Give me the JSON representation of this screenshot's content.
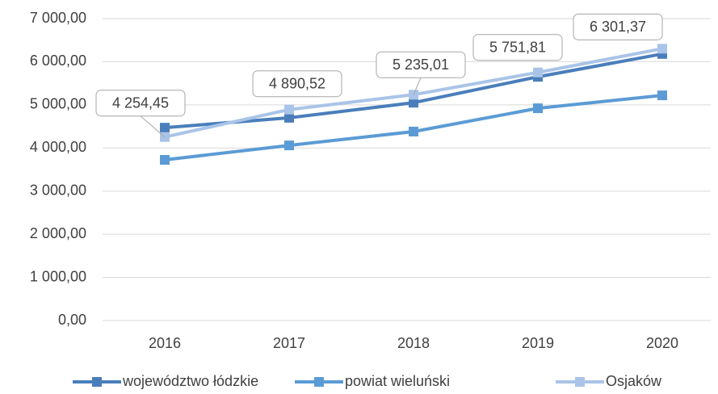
{
  "chart_data": {
    "type": "line",
    "categories": [
      "2016",
      "2017",
      "2018",
      "2019",
      "2020"
    ],
    "series": [
      {
        "name": "województwo łódzkie",
        "color": "#4a7ebb",
        "values": [
          4470,
          4700,
          5050,
          5650,
          6180
        ]
      },
      {
        "name": "powiat wieluński",
        "color": "#5b9bd5",
        "values": [
          3725,
          4060,
          4380,
          4920,
          5220
        ]
      },
      {
        "name": "Osjaków",
        "color": "#a9c4e8",
        "values": [
          4254.45,
          4890.52,
          5235.01,
          5751.81,
          6301.37
        ],
        "value_labels": [
          "4 254,45",
          "4 890,52",
          "5 235,01",
          "5 751,81",
          "6 301,37"
        ]
      }
    ],
    "ylim": [
      0,
      7000
    ],
    "yticks": [
      {
        "value": 0,
        "label": "0,00"
      },
      {
        "value": 1000,
        "label": "1 000,00"
      },
      {
        "value": 2000,
        "label": "2 000,00"
      },
      {
        "value": 3000,
        "label": "3 000,00"
      },
      {
        "value": 4000,
        "label": "4 000,00"
      },
      {
        "value": 5000,
        "label": "5 000,00"
      },
      {
        "value": 6000,
        "label": "6 000,00"
      },
      {
        "value": 7000,
        "label": "7 000,00"
      }
    ],
    "grid": true,
    "legend": "bottom"
  }
}
